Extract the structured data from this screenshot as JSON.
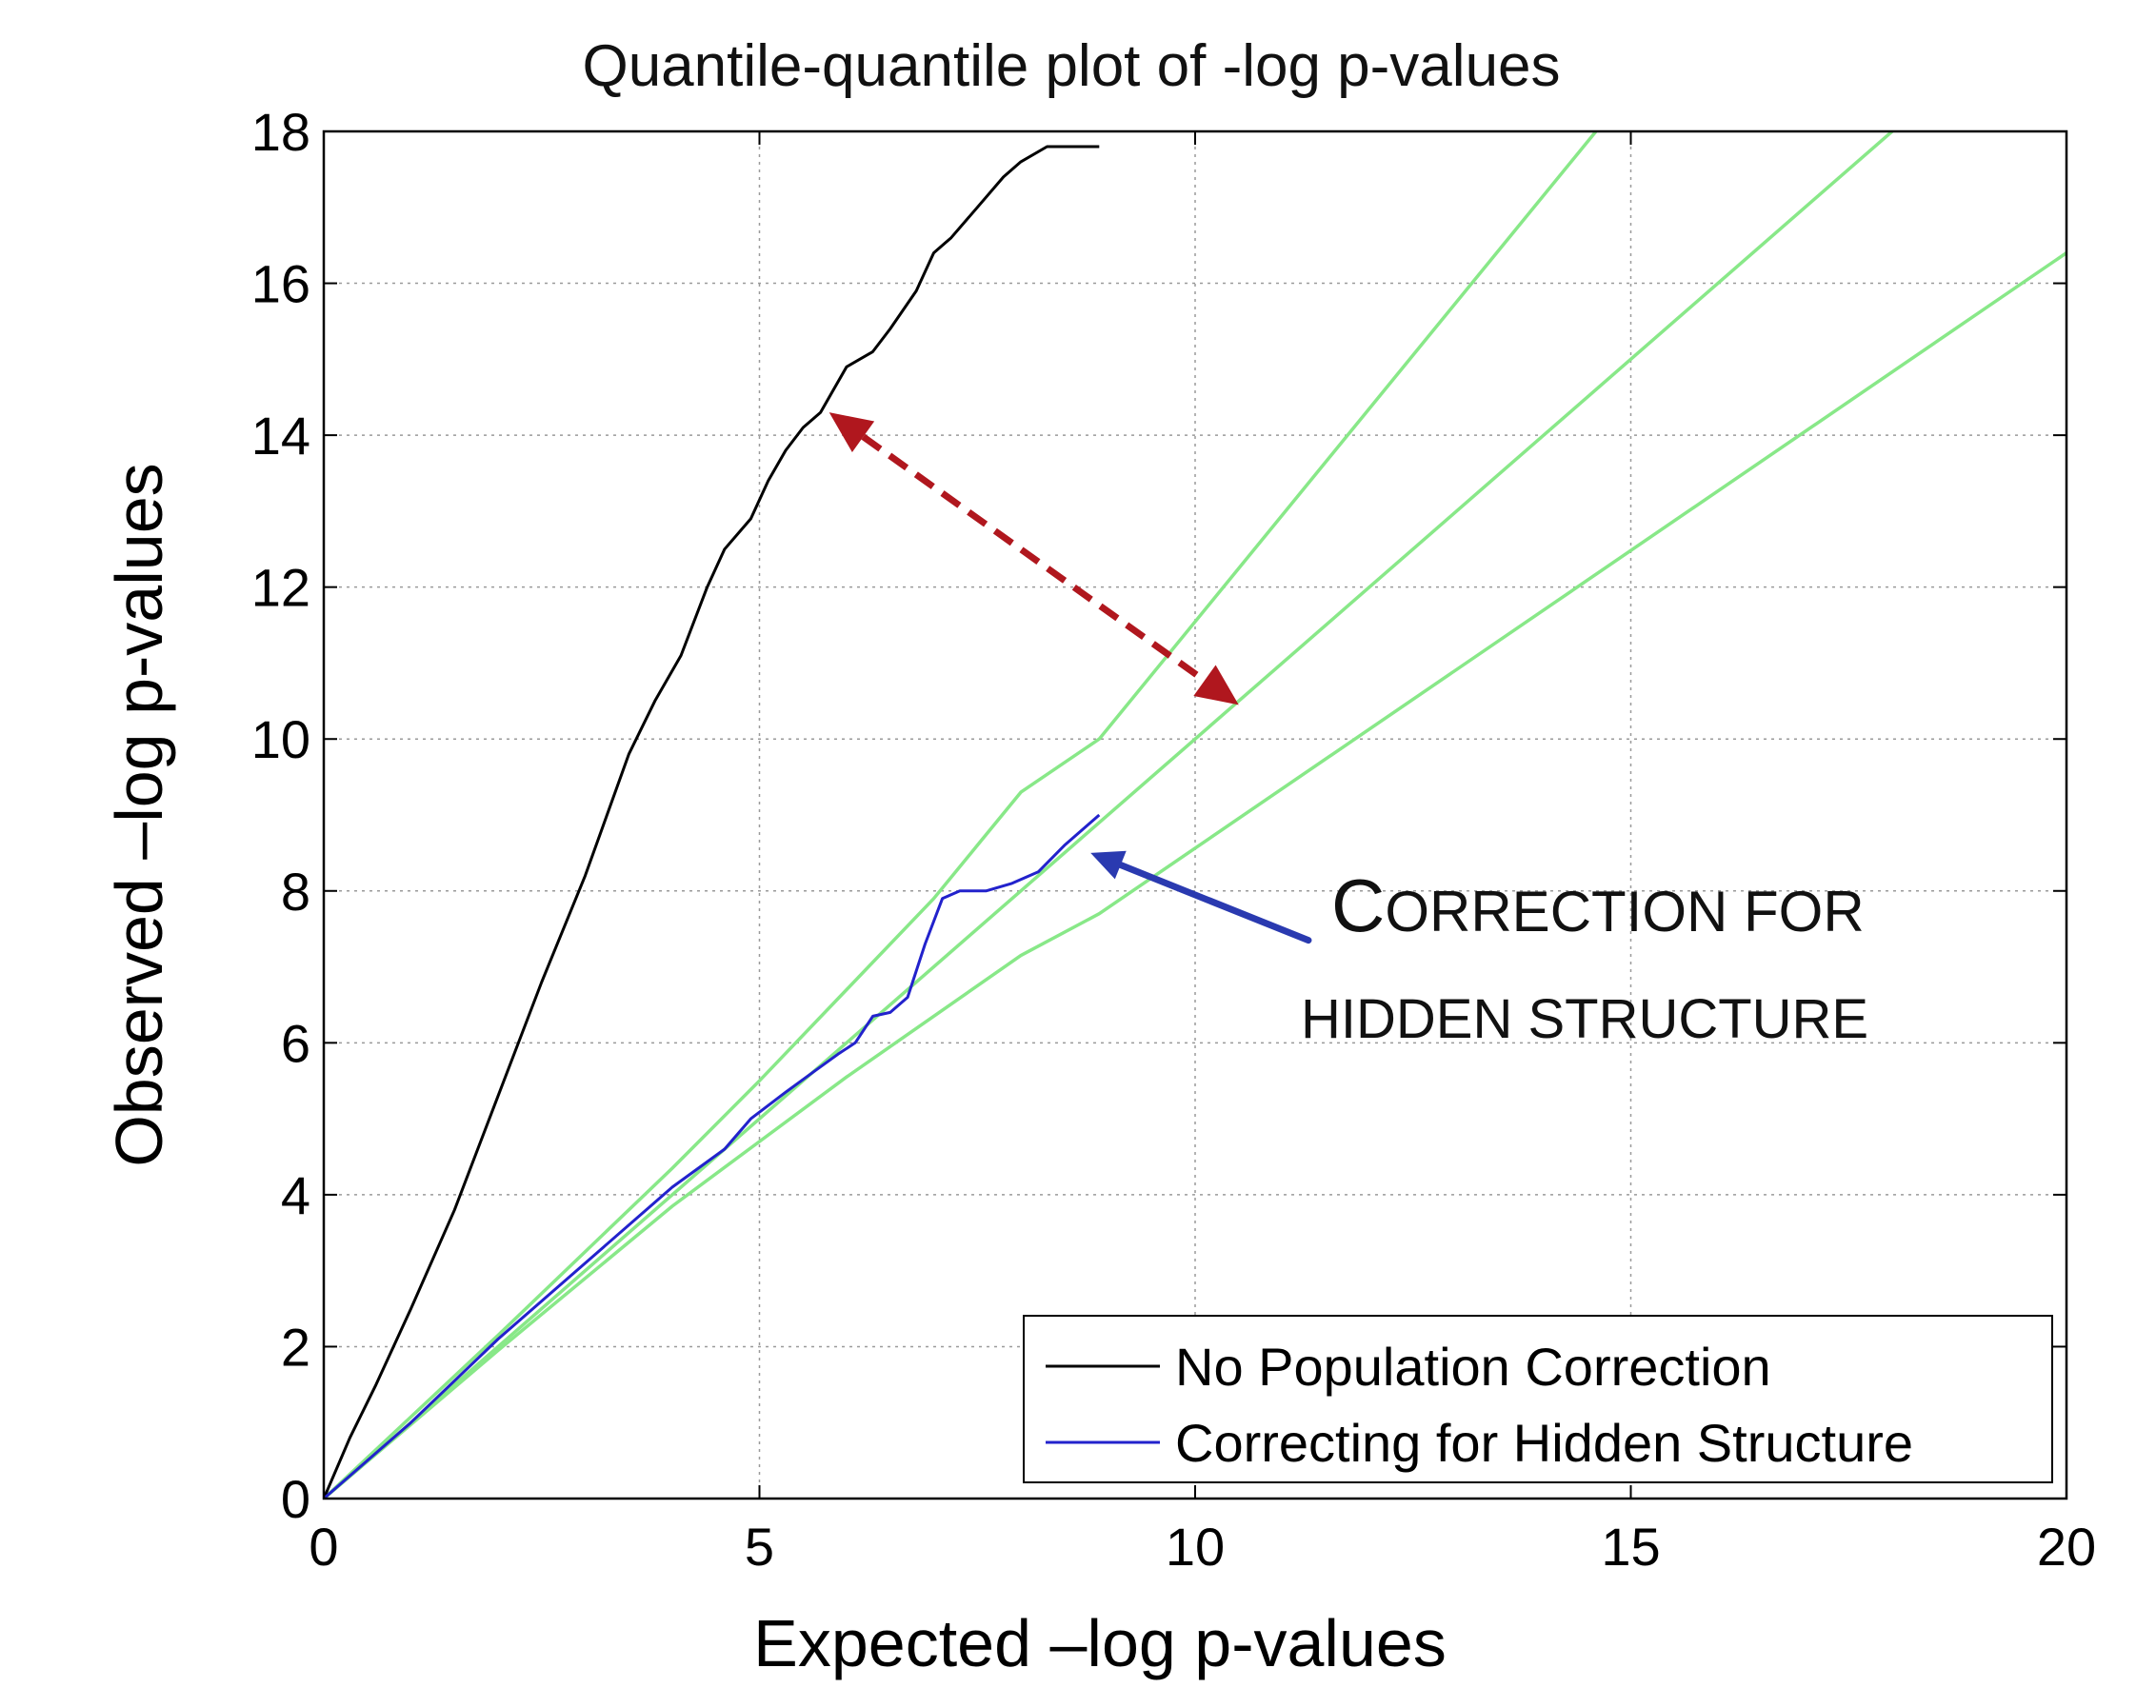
{
  "chart_data": {
    "type": "line",
    "title": "Quantile-quantile plot of -log p-values",
    "xlabel": "Expected –log p-values",
    "ylabel": "Observed –log p-values",
    "xlim": [
      0,
      20
    ],
    "ylim": [
      0,
      18
    ],
    "xticks": [
      "0",
      "5",
      "10",
      "15",
      "20"
    ],
    "yticks": [
      "0",
      "2",
      "4",
      "6",
      "8",
      "10",
      "12",
      "14",
      "16",
      "18"
    ],
    "grid": true,
    "legend": {
      "placement": "bottom-right",
      "entries": [
        "No Population Correction",
        "Correcting for Hidden Structure"
      ]
    },
    "series": [
      {
        "name": "No Population Correction",
        "color": "#000000",
        "x": [
          0,
          0.3,
          0.6,
          1.0,
          1.5,
          2.0,
          2.5,
          3.0,
          3.5,
          3.8,
          4.1,
          4.4,
          4.6,
          4.9,
          5.1,
          5.3,
          5.5,
          5.7,
          5.85,
          6.0,
          6.3,
          6.5,
          6.8,
          7.0,
          7.2,
          7.5,
          7.8,
          8.0,
          8.3,
          8.9
        ],
        "y": [
          0,
          0.8,
          1.5,
          2.5,
          3.8,
          5.3,
          6.8,
          8.2,
          9.8,
          10.5,
          11.1,
          12.0,
          12.5,
          12.9,
          13.4,
          13.8,
          14.1,
          14.3,
          14.6,
          14.9,
          15.1,
          15.4,
          15.9,
          16.4,
          16.6,
          17.0,
          17.4,
          17.6,
          17.8,
          17.8
        ]
      },
      {
        "name": "Correcting for Hidden Structure",
        "color": "#2222cc",
        "x": [
          0,
          1.0,
          2.0,
          3.0,
          4.0,
          4.6,
          4.9,
          5.3,
          5.6,
          5.9,
          6.1,
          6.3,
          6.5,
          6.7,
          6.9,
          7.1,
          7.3,
          7.6,
          7.9,
          8.2,
          8.5,
          8.9
        ],
        "y": [
          0,
          1.0,
          2.1,
          3.1,
          4.1,
          4.6,
          5.0,
          5.35,
          5.6,
          5.85,
          6.0,
          6.35,
          6.4,
          6.6,
          7.3,
          7.9,
          8.0,
          8.0,
          8.1,
          8.25,
          8.6,
          9.0
        ]
      },
      {
        "color": "#88e888",
        "x": [
          0,
          20
        ],
        "y": [
          0,
          20
        ]
      },
      {
        "color": "#88e888",
        "x": [
          0,
          2.0,
          4.0,
          5.0,
          6.0,
          7.0,
          7.5,
          8.0,
          8.9,
          14.6
        ],
        "y": [
          0,
          2.15,
          4.35,
          5.5,
          6.7,
          7.9,
          8.6,
          9.3,
          10.0,
          18.0
        ]
      },
      {
        "color": "#88e888",
        "x": [
          0,
          2.0,
          4.0,
          5.0,
          6.0,
          7.0,
          8.0,
          8.9,
          20.0
        ],
        "y": [
          0,
          1.95,
          3.85,
          4.7,
          5.55,
          6.35,
          7.15,
          7.7,
          16.4
        ]
      }
    ],
    "annotations": [
      {
        "text_line1_cap": "C",
        "text_line1_rest": "ORRECTION FOR",
        "text_line2": "HIDDEN STRUCTURE",
        "color": "#2a3ab0",
        "arrow_tail": [
          11.3,
          7.35
        ],
        "arrow_head": [
          8.8,
          8.5
        ]
      },
      {
        "style": "dashed-double-arrow",
        "color": "#b0171e",
        "from": [
          5.8,
          14.3
        ],
        "to": [
          10.5,
          10.45
        ]
      }
    ]
  }
}
